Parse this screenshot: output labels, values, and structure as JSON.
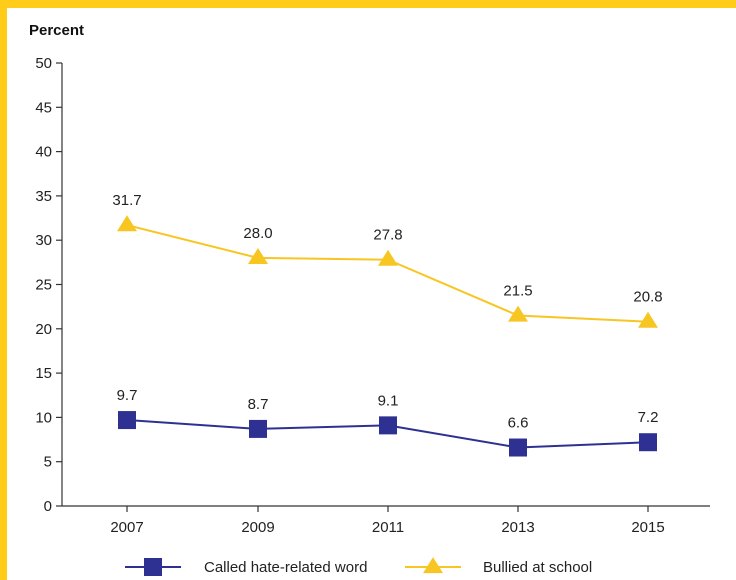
{
  "chart_data": {
    "type": "line",
    "ylabel": "Percent",
    "ylim": [
      0,
      50
    ],
    "yticks": [
      0,
      5,
      10,
      15,
      20,
      25,
      30,
      35,
      40,
      45,
      50
    ],
    "categories": [
      "2007",
      "2009",
      "2011",
      "2013",
      "2015"
    ],
    "grid": false,
    "legend_position": "bottom",
    "series": [
      {
        "name": "Called hate-related word",
        "values": [
          9.7,
          8.7,
          9.1,
          6.6,
          7.2
        ],
        "labels": [
          "9.7",
          "8.7",
          "9.1",
          "6.6",
          "7.2"
        ],
        "color": "#2e3192",
        "marker": "square"
      },
      {
        "name": "Bullied at school",
        "values": [
          31.7,
          28.0,
          27.8,
          21.5,
          20.8
        ],
        "labels": [
          "31.7",
          "28.0",
          "27.8",
          "21.5",
          "20.8"
        ],
        "color": "#f7c623",
        "marker": "triangle"
      }
    ]
  },
  "colors": {
    "frame": "#ffcc1a",
    "axis": "#333333"
  }
}
